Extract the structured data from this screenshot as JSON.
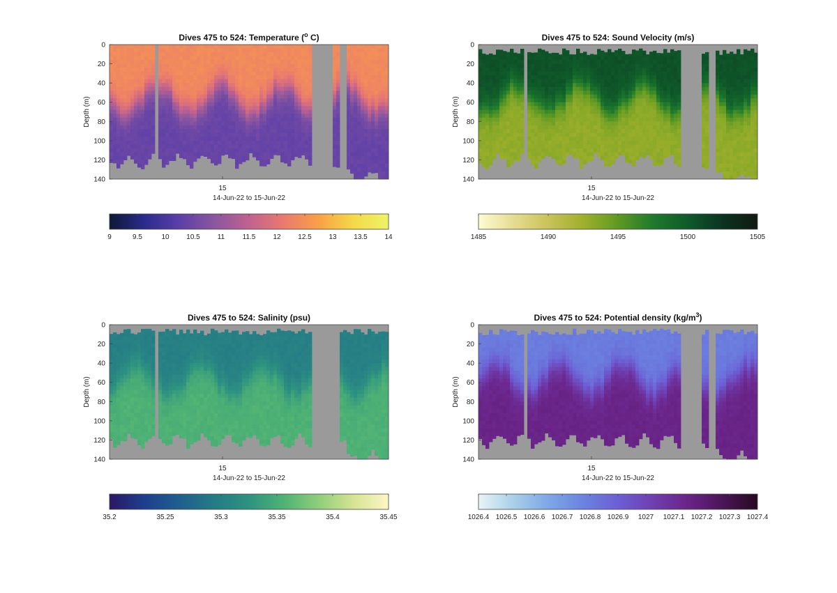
{
  "chart_data": [
    {
      "type": "heatmap",
      "title": "Dives 475 to 524: Temperature (",
      "title_sup": "o",
      "title_tail": " C)",
      "ylabel": "Depth (m)",
      "xlabel": "14-Jun-22 to 15-Jun-22",
      "xtick_labels": [
        "15"
      ],
      "ylim": [
        0,
        140
      ],
      "yticks": [
        0,
        20,
        40,
        60,
        80,
        100,
        120,
        140
      ],
      "mixed_layer_depth_m": [
        58,
        62,
        66,
        70,
        65,
        60,
        72,
        70,
        68,
        62,
        66,
        72,
        60,
        64,
        68,
        66,
        70,
        62,
        58,
        64,
        68,
        70,
        66,
        60,
        62,
        64,
        66,
        62,
        58,
        54,
        52,
        56,
        58,
        60,
        62,
        64,
        66,
        64,
        62,
        66
      ],
      "max_depth_m": [
        123,
        120,
        124,
        125,
        128,
        125,
        128,
        127,
        126,
        124,
        122,
        121,
        124,
        125,
        126,
        126,
        127,
        127,
        127,
        130,
        129,
        135,
        136,
        138,
        139,
        140
      ],
      "gaps": [
        [
          0.16,
          0.18
        ],
        [
          0.72,
          0.8
        ],
        [
          0.83,
          0.85
        ]
      ],
      "surface_value": 12.4,
      "deep_value": 10.4,
      "colormap": [
        "#0d1a33",
        "#2b2b8c",
        "#5b3fa8",
        "#8a56a0",
        "#c0628f",
        "#ea7a6e",
        "#f9a046",
        "#f4d949",
        "#eef468"
      ],
      "clim": [
        9,
        14
      ],
      "cbar_ticks": [
        "9",
        "9.5",
        "10",
        "10.5",
        "11",
        "11.5",
        "12",
        "12.5",
        "13",
        "13.5",
        "14"
      ]
    },
    {
      "type": "heatmap",
      "title": "Dives 475 to 524: Sound Velocity (m/s)",
      "title_sup": "",
      "title_tail": "",
      "ylabel": "Depth (m)",
      "xlabel": "14-Jun-22 to 15-Jun-22",
      "xtick_labels": [
        "15"
      ],
      "ylim": [
        0,
        140
      ],
      "yticks": [
        0,
        20,
        40,
        60,
        80,
        100,
        120,
        140
      ],
      "gaps": [
        [
          0.16,
          0.18
        ],
        [
          0.72,
          0.8
        ],
        [
          0.83,
          0.85
        ]
      ],
      "surface_value": 1500.5,
      "deep_value": 1493,
      "colormap": [
        "#fdfbd4",
        "#e6dc91",
        "#c9c25a",
        "#9fb02c",
        "#5f9a22",
        "#1f7a2c",
        "#0f5a2a",
        "#0b3320",
        "#121a12"
      ],
      "clim": [
        1485,
        1505
      ],
      "cbar_ticks": [
        "1485",
        "1490",
        "1495",
        "1500",
        "1505"
      ]
    },
    {
      "type": "heatmap",
      "title": "Dives 475 to 524: Salinity (psu)",
      "title_sup": "",
      "title_tail": "",
      "ylabel": "Depth (m)",
      "xlabel": "14-Jun-22 to 15-Jun-22",
      "xtick_labels": [
        "15"
      ],
      "ylim": [
        0,
        140
      ],
      "yticks": [
        0,
        20,
        40,
        60,
        80,
        100,
        120,
        140
      ],
      "gaps": [
        [
          0.16,
          0.18
        ],
        [
          0.72,
          0.8
        ],
        [
          0.8,
          0.83
        ]
      ],
      "surface_value": 35.3,
      "deep_value": 35.355,
      "colormap": [
        "#2a1863",
        "#1f3e8e",
        "#1f5f8f",
        "#257b86",
        "#2e9380",
        "#4fb274",
        "#8fce7a",
        "#d5e493",
        "#fdf6c4"
      ],
      "clim": [
        35.2,
        35.45
      ],
      "cbar_ticks": [
        "35.2",
        "35.25",
        "35.3",
        "35.35",
        "35.4",
        "35.45"
      ]
    },
    {
      "type": "heatmap",
      "title": "Dives 475 to 524: Potential density (kg/m",
      "title_sup": "3",
      "title_tail": ")",
      "ylabel": "Depth (m)",
      "xlabel": "14-Jun-22 to 15-Jun-22",
      "xtick_labels": [
        "15"
      ],
      "ylim": [
        0,
        140
      ],
      "yticks": [
        0,
        20,
        40,
        60,
        80,
        100,
        120,
        140
      ],
      "gaps": [
        [
          0.16,
          0.18
        ],
        [
          0.72,
          0.8
        ],
        [
          0.83,
          0.85
        ]
      ],
      "surface_value": 1026.8,
      "deep_value": 1027.15,
      "colormap": [
        "#e8f4f6",
        "#a9cfe8",
        "#7ea7e6",
        "#6b83e0",
        "#6c5fd4",
        "#6f3fb0",
        "#6a2488",
        "#4b1558",
        "#260a20"
      ],
      "clim": [
        1026.4,
        1027.4
      ],
      "cbar_ticks": [
        "1026.4",
        "1026.5",
        "1026.6",
        "1026.7",
        "1026.8",
        "1026.9",
        "1027",
        "1027.1",
        "1027.2",
        "1027.3",
        "1027.4"
      ]
    }
  ],
  "colors": {
    "no_data": "#9a9a9a",
    "background": "#ffffff"
  }
}
